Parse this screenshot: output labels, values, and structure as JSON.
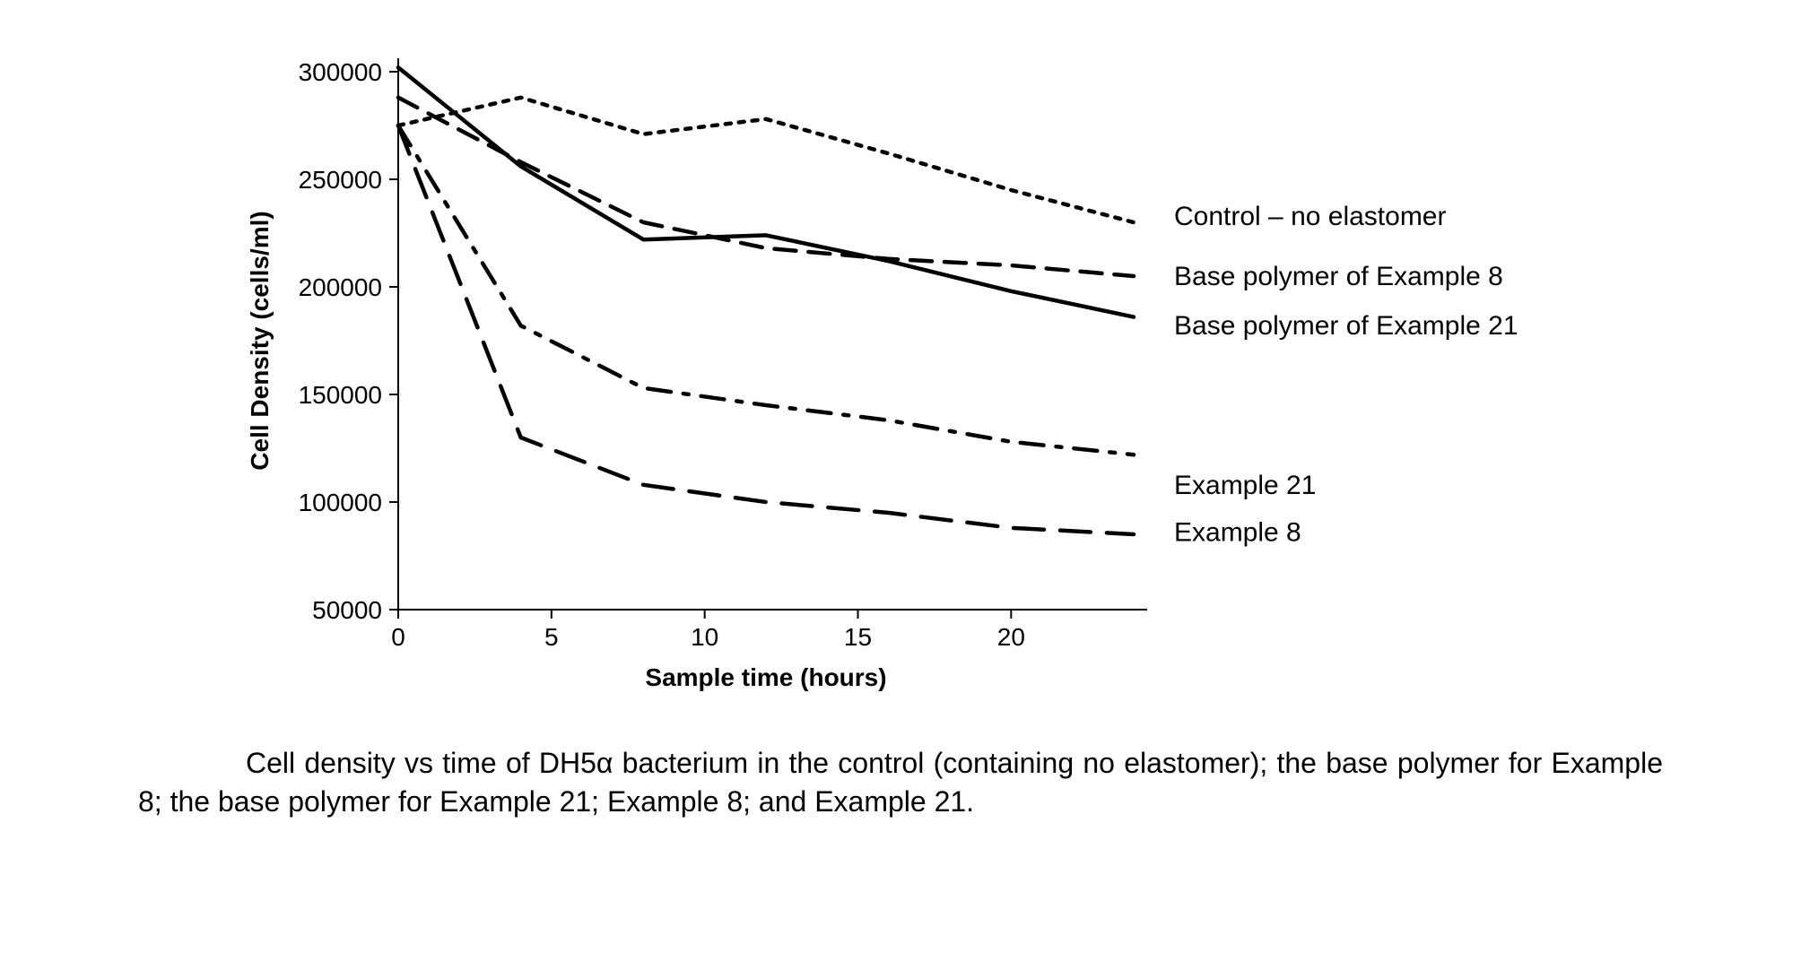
{
  "chart": {
    "type": "line",
    "xlabel": "Sample time (hours)",
    "ylabel": "Cell Density (cells/ml)",
    "xlabel_fontsize": 28,
    "ylabel_fontsize": 28,
    "tick_fontsize": 28,
    "series_label_fontsize": 30,
    "xlim": [
      0,
      24
    ],
    "ylim": [
      50000,
      300000
    ],
    "xticks": [
      0,
      5,
      10,
      15,
      20
    ],
    "yticks": [
      50000,
      100000,
      150000,
      200000,
      250000,
      300000
    ],
    "background_color": "#ffffff",
    "axis_color": "#000000",
    "line_color": "#000000",
    "axis_width": 2,
    "line_width": 4.5,
    "series": [
      {
        "name": "control",
        "label": "Control – no elastomer",
        "dash": "dotted",
        "x": [
          0,
          4,
          8,
          12,
          16,
          20,
          24
        ],
        "y": [
          275000,
          288000,
          271000,
          278000,
          262000,
          245000,
          230000
        ]
      },
      {
        "name": "base-polymer-ex8",
        "label": "Base polymer of Example 8",
        "dash": "dashed-medium",
        "x": [
          0,
          4,
          8,
          12,
          16,
          20,
          24
        ],
        "y": [
          288000,
          258000,
          230000,
          218000,
          213000,
          210000,
          205000
        ]
      },
      {
        "name": "base-polymer-ex21",
        "label": "Base polymer of Example 21",
        "dash": "solid",
        "x": [
          0,
          4,
          8,
          12,
          16,
          20,
          24
        ],
        "y": [
          302000,
          256000,
          222000,
          224000,
          212000,
          198000,
          186000
        ]
      },
      {
        "name": "example-21",
        "label": "Example 21",
        "dash": "dash-dot",
        "x": [
          0,
          4,
          8,
          12,
          16,
          20,
          24
        ],
        "y": [
          275000,
          182000,
          153000,
          145000,
          138000,
          128000,
          122000
        ]
      },
      {
        "name": "example-8",
        "label": "Example 8",
        "dash": "dashed-long",
        "x": [
          0,
          4,
          8,
          12,
          16,
          20,
          24
        ],
        "y": [
          275000,
          130000,
          108000,
          100000,
          95000,
          88000,
          85000
        ]
      }
    ],
    "label_positions": [
      {
        "series": "control",
        "y_at_label": 233000
      },
      {
        "series": "base-polymer-ex8",
        "y_at_label": 205000
      },
      {
        "series": "base-polymer-ex21",
        "y_at_label": 182000
      },
      {
        "series": "example-21",
        "y_at_label": 108000
      },
      {
        "series": "example-8",
        "y_at_label": 86000
      }
    ]
  },
  "caption": {
    "text": "Cell density vs time of DH5α bacterium in the control (containing no elastomer); the base polymer for Example 8; the base polymer for Example 21; Example 8; and Example 21.",
    "fontsize": 32
  }
}
